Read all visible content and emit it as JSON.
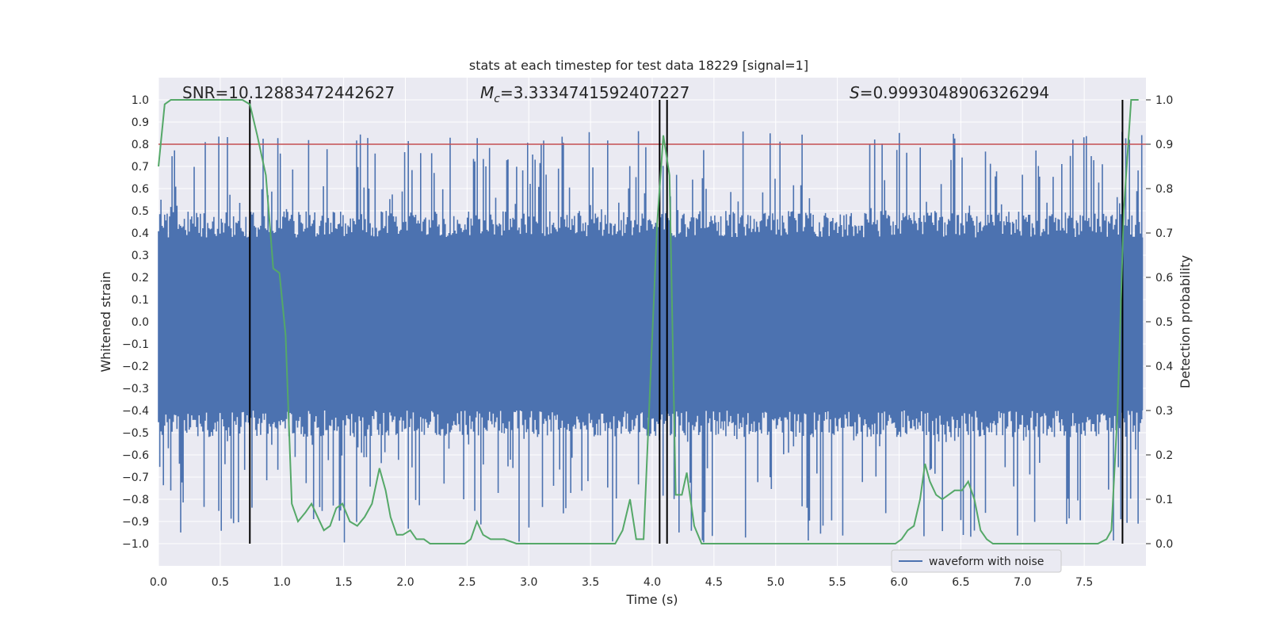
{
  "chart_data": {
    "type": "line",
    "title": "stats at each timestep for test data 18229 [signal=1]",
    "xlabel": "Time (s)",
    "ylabel": "Whitened strain",
    "y2label": "Detection probability",
    "xlim": [
      0.0,
      8.0
    ],
    "ylim": [
      -1.1,
      1.1
    ],
    "y2lim": [
      -0.05,
      1.05
    ],
    "x_ticks": [
      0.0,
      0.5,
      1.0,
      1.5,
      2.0,
      2.5,
      3.0,
      3.5,
      4.0,
      4.5,
      5.0,
      5.5,
      6.0,
      6.5,
      7.0,
      7.5
    ],
    "x_tick_labels": [
      "0.0",
      "0.5",
      "1.0",
      "1.5",
      "2.0",
      "2.5",
      "3.0",
      "3.5",
      "4.0",
      "4.5",
      "5.0",
      "5.5",
      "6.0",
      "6.5",
      "7.0",
      "7.5"
    ],
    "y_ticks": [
      1.0,
      0.9,
      0.8,
      0.7,
      0.6,
      0.5,
      0.4,
      0.3,
      0.2,
      0.1,
      0.0,
      -0.1,
      -0.2,
      -0.3,
      -0.4,
      -0.5,
      -0.6,
      -0.7,
      -0.8,
      -0.9,
      -1.0
    ],
    "y_tick_labels": [
      "1.0",
      "0.9",
      "0.8",
      "0.7",
      "0.6",
      "0.5",
      "0.4",
      "0.3",
      "0.2",
      "0.1",
      "0.0",
      "−0.1",
      "−0.2",
      "−0.3",
      "−0.4",
      "−0.5",
      "−0.6",
      "−0.7",
      "−0.8",
      "−0.9",
      "−1.0"
    ],
    "y2_ticks": [
      1.0,
      0.9,
      0.8,
      0.7,
      0.6,
      0.5,
      0.4,
      0.3,
      0.2,
      0.1,
      0.0
    ],
    "y2_tick_labels": [
      "1.0",
      "0.9",
      "0.8",
      "0.7",
      "0.6",
      "0.5",
      "0.4",
      "0.3",
      "0.2",
      "0.1",
      "0.0"
    ],
    "annotations": {
      "snr": "SNR=10.12883472442627",
      "mc_symbol": "M",
      "mc_subscript": "c",
      "mc_value": "=3.3334741592407227",
      "s_symbol": "S",
      "s_value": "=0.9993048906326294"
    },
    "threshold": {
      "value": 0.9,
      "axis": "right",
      "color": "#c44e52"
    },
    "vertical_markers": [
      0.74,
      4.06,
      4.12,
      7.81
    ],
    "waveform": {
      "name": "waveform with noise",
      "color": "#4c72b0",
      "sample_count": 800,
      "envelope": [
        0.38,
        0.4
      ],
      "spike_range": [
        0.45,
        0.86
      ],
      "min_value": -1.0
    },
    "probability": {
      "name": "detection probability",
      "color": "#55a868",
      "x": [
        0.0,
        0.05,
        0.1,
        0.2,
        0.3,
        0.4,
        0.5,
        0.6,
        0.68,
        0.74,
        0.8,
        0.87,
        0.93,
        0.98,
        1.03,
        1.08,
        1.13,
        1.19,
        1.24,
        1.29,
        1.34,
        1.39,
        1.44,
        1.49,
        1.55,
        1.61,
        1.67,
        1.73,
        1.79,
        1.84,
        1.88,
        1.93,
        1.98,
        2.04,
        2.09,
        2.15,
        2.2,
        2.26,
        2.31,
        2.37,
        2.42,
        2.48,
        2.53,
        2.58,
        2.63,
        2.69,
        2.74,
        2.8,
        2.9,
        3.0,
        3.1,
        3.2,
        3.3,
        3.4,
        3.5,
        3.6,
        3.7,
        3.76,
        3.82,
        3.87,
        3.93,
        3.99,
        4.04,
        4.09,
        4.14,
        4.19,
        4.24,
        4.28,
        4.34,
        4.4,
        4.45,
        4.5,
        4.6,
        4.7,
        4.8,
        4.9,
        5.0,
        5.1,
        5.2,
        5.3,
        5.4,
        5.5,
        5.6,
        5.7,
        5.8,
        5.9,
        5.97,
        6.02,
        6.07,
        6.12,
        6.17,
        6.21,
        6.25,
        6.3,
        6.35,
        6.4,
        6.45,
        6.51,
        6.56,
        6.61,
        6.66,
        6.71,
        6.76,
        6.81,
        6.9,
        7.0,
        7.1,
        7.2,
        7.3,
        7.4,
        7.5,
        7.61,
        7.68,
        7.72,
        7.77,
        7.82,
        7.88,
        7.94
      ],
      "y": [
        0.85,
        0.99,
        1.0,
        1.0,
        1.0,
        1.0,
        1.0,
        1.0,
        1.0,
        0.99,
        0.92,
        0.83,
        0.62,
        0.61,
        0.47,
        0.09,
        0.05,
        0.07,
        0.09,
        0.06,
        0.03,
        0.04,
        0.08,
        0.09,
        0.05,
        0.04,
        0.06,
        0.09,
        0.17,
        0.12,
        0.06,
        0.02,
        0.02,
        0.03,
        0.01,
        0.01,
        0.0,
        0.0,
        0.0,
        0.0,
        0.0,
        0.0,
        0.01,
        0.05,
        0.02,
        0.01,
        0.01,
        0.01,
        0.0,
        0.0,
        0.0,
        0.0,
        0.0,
        0.0,
        0.0,
        0.0,
        0.0,
        0.03,
        0.1,
        0.01,
        0.01,
        0.4,
        0.72,
        0.92,
        0.83,
        0.11,
        0.11,
        0.16,
        0.04,
        0.0,
        0.0,
        0.0,
        0.0,
        0.0,
        0.0,
        0.0,
        0.0,
        0.0,
        0.0,
        0.0,
        0.0,
        0.0,
        0.0,
        0.0,
        0.0,
        0.0,
        0.0,
        0.01,
        0.03,
        0.04,
        0.1,
        0.18,
        0.14,
        0.11,
        0.1,
        0.11,
        0.12,
        0.12,
        0.14,
        0.1,
        0.03,
        0.01,
        0.0,
        0.0,
        0.0,
        0.0,
        0.0,
        0.0,
        0.0,
        0.0,
        0.0,
        0.0,
        0.01,
        0.03,
        0.3,
        0.75,
        1.0,
        1.0
      ]
    },
    "legend": {
      "label": "waveform with noise",
      "position": "lower-right"
    }
  }
}
